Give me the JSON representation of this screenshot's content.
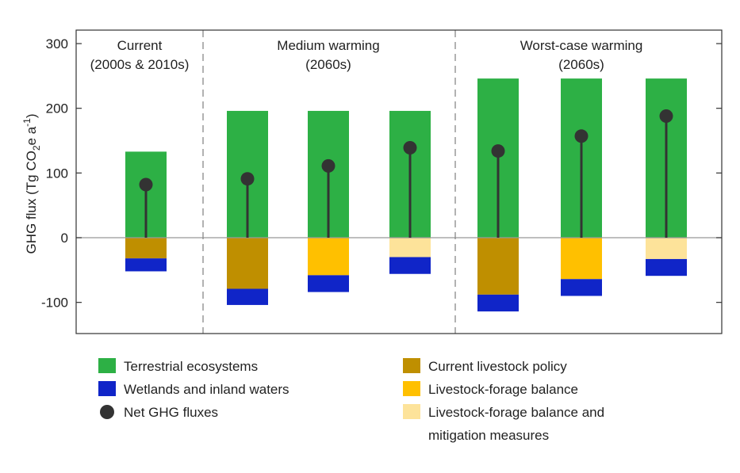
{
  "chart_data": {
    "type": "bar",
    "ylabel": {
      "prefix": "GHG flux (Tg CO",
      "sub": "2",
      "mid": "e a",
      "sup": "-1",
      "suffix": ")"
    },
    "ylim": [
      -150,
      320
    ],
    "yticks": [
      300,
      200,
      100,
      0,
      -100
    ],
    "grid": false,
    "groups": [
      {
        "label1": "Current",
        "label2": "(2000s & 2010s)"
      },
      {
        "label1": "Medium warming",
        "label2": "(2060s)"
      },
      {
        "label1": "Worst-case warming",
        "label2": "(2060s)"
      }
    ],
    "bars": [
      {
        "group": 0,
        "terrestrial": 133,
        "livestock": -32,
        "scenario": "Current livestock policy",
        "wetlands": -20,
        "net": 82
      },
      {
        "group": 1,
        "terrestrial": 196,
        "livestock": -79,
        "scenario": "Current livestock policy",
        "wetlands": -25,
        "net": 91
      },
      {
        "group": 1,
        "terrestrial": 196,
        "livestock": -58,
        "scenario": "Livestock-forage balance",
        "wetlands": -26,
        "net": 111
      },
      {
        "group": 1,
        "terrestrial": 196,
        "livestock": -30,
        "scenario": "Livestock-forage balance and mitigation measures",
        "wetlands": -26,
        "net": 139
      },
      {
        "group": 2,
        "terrestrial": 246,
        "livestock": -88,
        "scenario": "Current livestock policy",
        "wetlands": -26,
        "net": 134
      },
      {
        "group": 2,
        "terrestrial": 246,
        "livestock": -64,
        "scenario": "Livestock-forage balance",
        "wetlands": -26,
        "net": 157
      },
      {
        "group": 2,
        "terrestrial": 246,
        "livestock": -33,
        "scenario": "Livestock-forage balance and mitigation measures",
        "wetlands": -26,
        "net": 188
      }
    ],
    "legend": [
      {
        "key": "terrestrial",
        "label": "Terrestrial ecosystems",
        "marker": "square",
        "color": "#2db045"
      },
      {
        "key": "current",
        "label": "Current livestock policy",
        "marker": "square",
        "color": "#bf8f00"
      },
      {
        "key": "wetlands",
        "label": "Wetlands and inland waters",
        "marker": "square",
        "color": "#1025c8"
      },
      {
        "key": "balance",
        "label": "Livestock-forage balance",
        "marker": "square",
        "color": "#ffc000"
      },
      {
        "key": "net",
        "label": "Net GHG fluxes",
        "marker": "dot",
        "color": "#333333"
      },
      {
        "key": "mitigation",
        "label": "Livestock-forage balance and",
        "label2": "mitigation measures",
        "marker": "square",
        "color": "#fde39a"
      }
    ],
    "legend_placement": "bottom",
    "colors": {
      "terrestrial": "#2db045",
      "wetlands": "#1025c8",
      "net": "#333333",
      "Current livestock policy": "#bf8f00",
      "Livestock-forage balance": "#ffc000",
      "Livestock-forage balance and mitigation measures": "#fde39a",
      "zero_line": "#999999",
      "axis": "#333333",
      "divider": "#888888"
    }
  }
}
